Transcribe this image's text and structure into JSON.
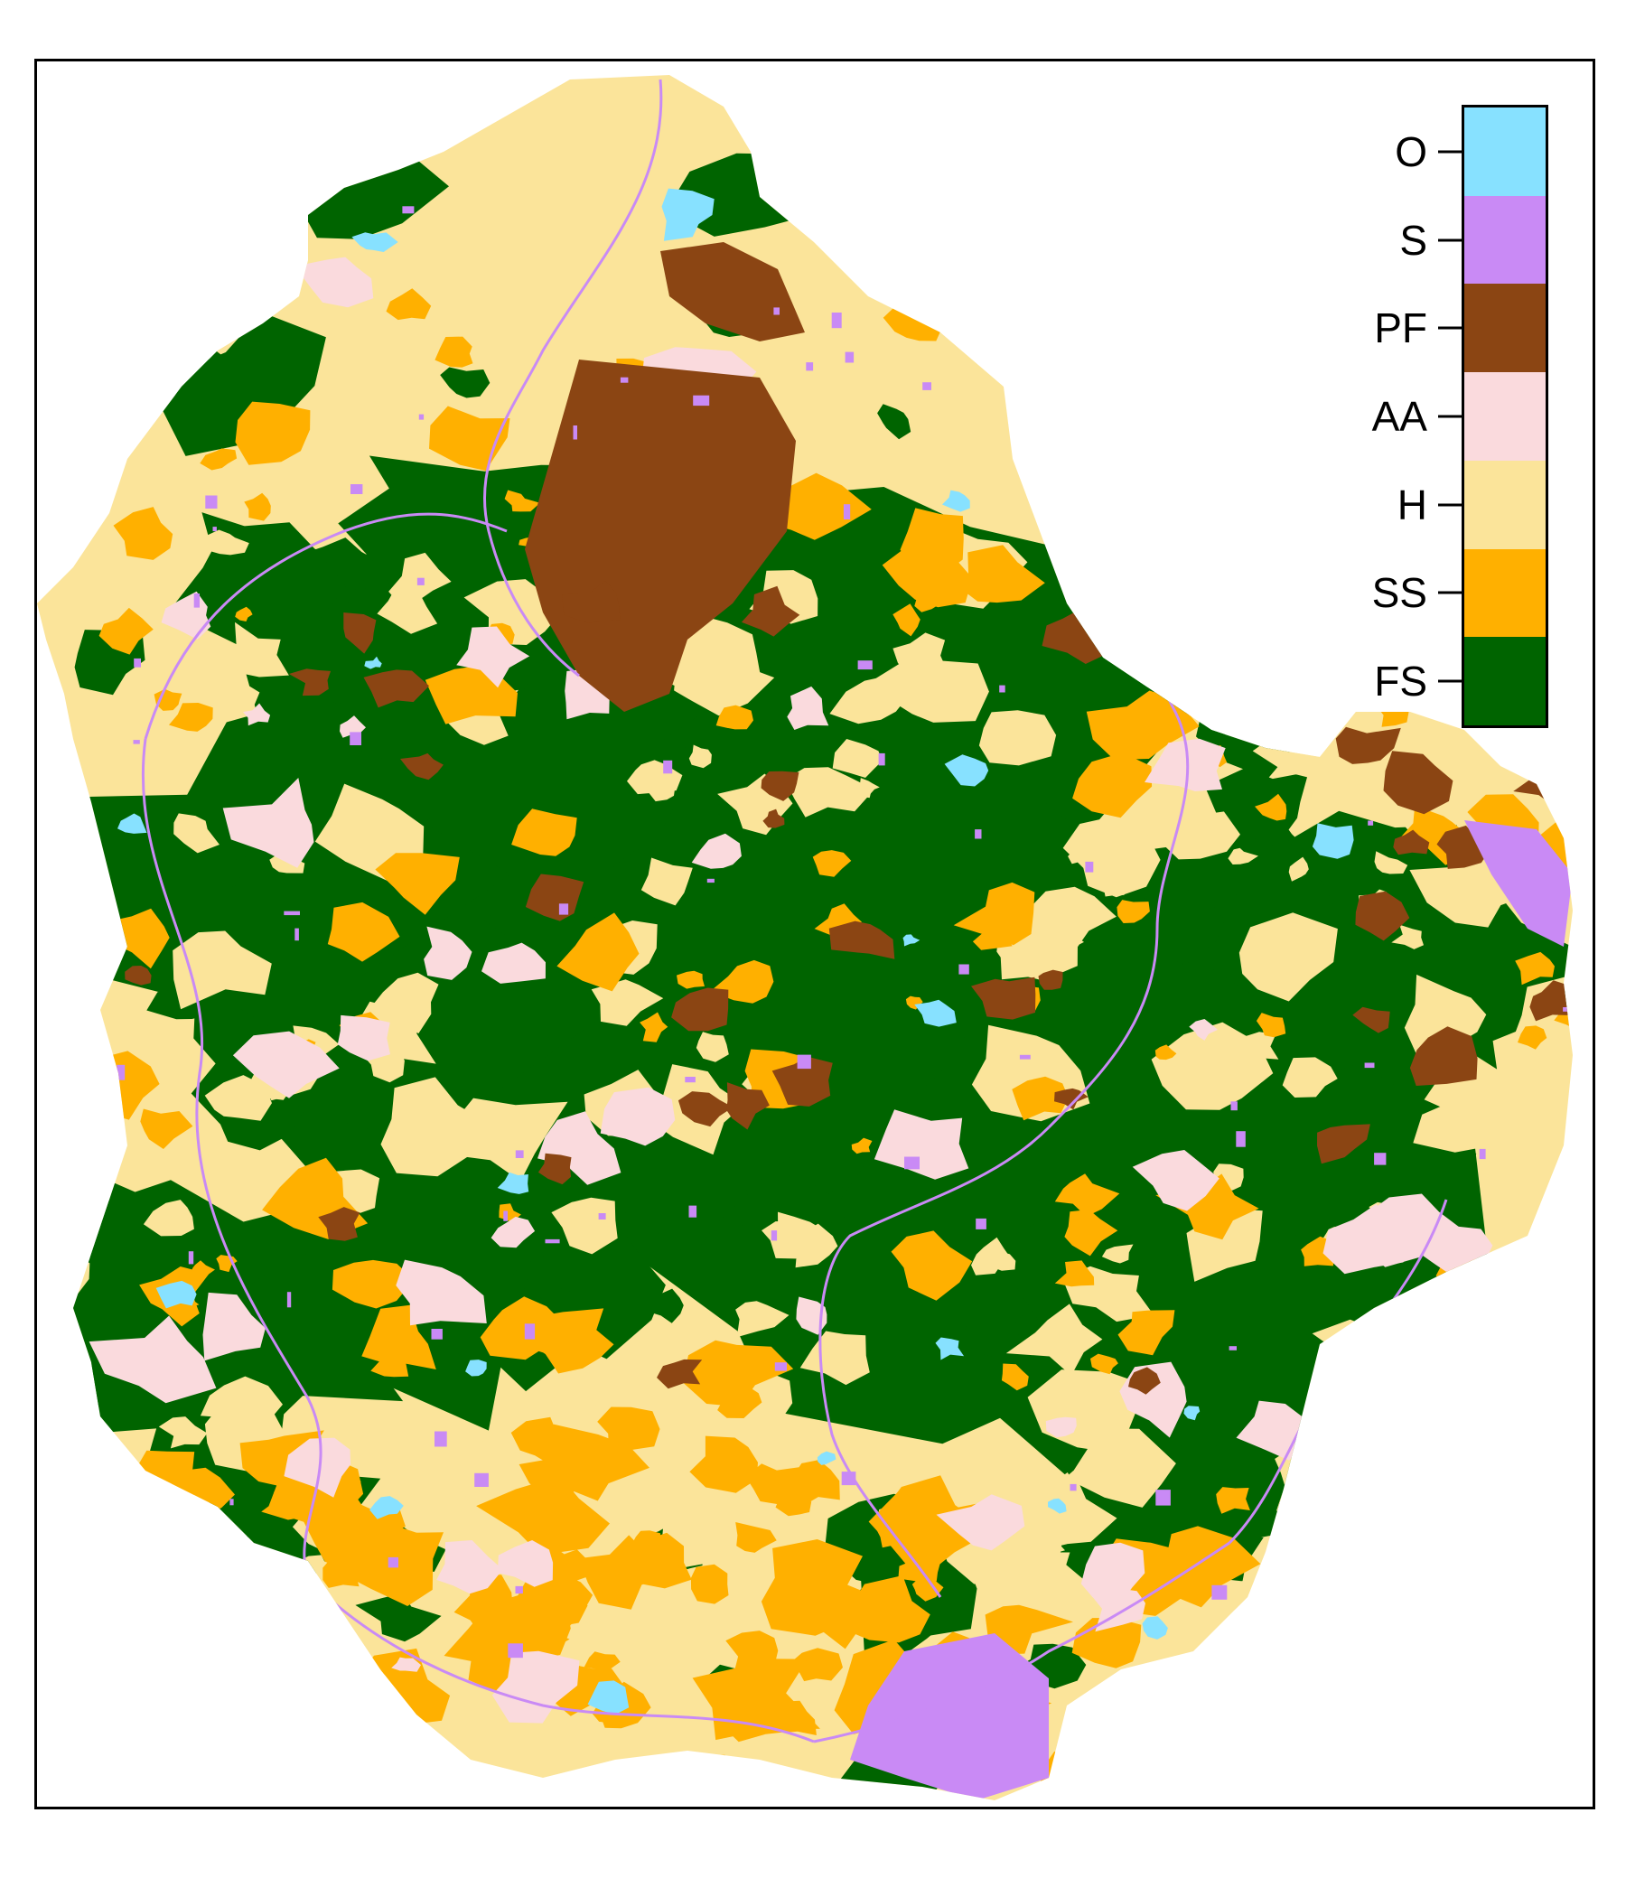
{
  "legend": {
    "title": "",
    "classes": [
      {
        "code": "O",
        "color": "#87E1FF"
      },
      {
        "code": "S",
        "color": "#C98AF5"
      },
      {
        "code": "PF",
        "color": "#8B4513"
      },
      {
        "code": "AA",
        "color": "#FADADD"
      },
      {
        "code": "H",
        "color": "#FBE49A"
      },
      {
        "code": "SS",
        "color": "#FFB000"
      },
      {
        "code": "FS",
        "color": "#006400"
      }
    ]
  },
  "colors": {
    "frame": "#000000",
    "background": "#ffffff",
    "road": "#C98AF5"
  }
}
